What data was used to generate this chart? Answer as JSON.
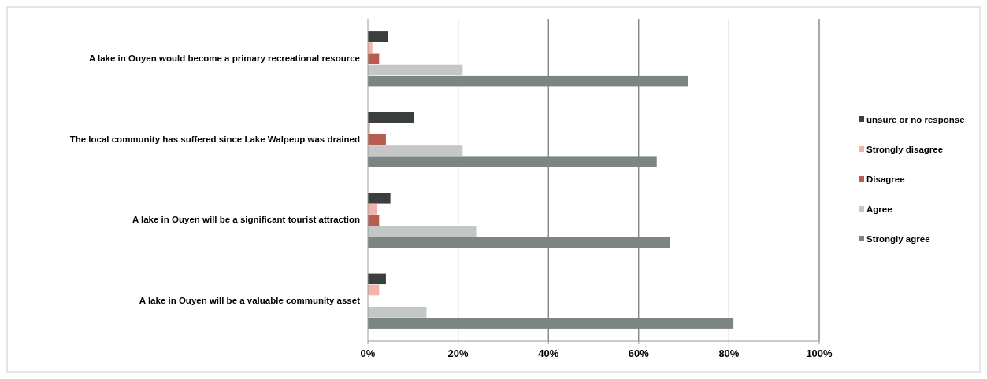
{
  "chart_data": {
    "type": "bar",
    "orientation": "horizontal",
    "categories": [
      "A lake in Ouyen would become a primary recreational resource",
      "The local community has suffered since Lake Walpeup was drained",
      "A lake in Ouyen will be a significant tourist attraction",
      "A lake in Ouyen will be a valuable community asset"
    ],
    "series": [
      {
        "name": "unsure or no response",
        "color": "#3a3f3d",
        "values": [
          4.4,
          10.3,
          5,
          4
        ]
      },
      {
        "name": "Strongly disagree",
        "color": "#f2b4aa",
        "values": [
          1,
          0.5,
          2,
          2.5
        ]
      },
      {
        "name": "Disagree",
        "color": "#b85c50",
        "values": [
          2.5,
          4,
          2.5,
          0
        ]
      },
      {
        "name": "Agree",
        "color": "#c4c7c5",
        "values": [
          21,
          21,
          24,
          13
        ]
      },
      {
        "name": "Strongly agree",
        "color": "#7b8683",
        "values": [
          71,
          64,
          67,
          81
        ]
      }
    ],
    "xlim": [
      0,
      100
    ],
    "xticks": [
      {
        "value": 0,
        "label": "0%"
      },
      {
        "value": 20,
        "label": "20%"
      },
      {
        "value": 40,
        "label": "40%"
      },
      {
        "value": 60,
        "label": "60%"
      },
      {
        "value": 80,
        "label": "80%"
      },
      {
        "value": 100,
        "label": "100%"
      }
    ],
    "grid": "x",
    "legend": "right"
  }
}
